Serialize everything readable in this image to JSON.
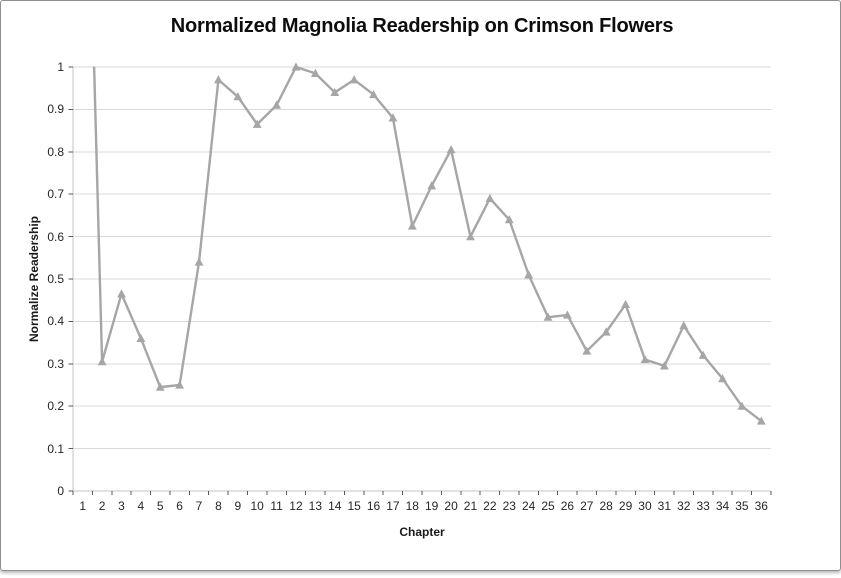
{
  "chart_data": {
    "type": "line",
    "title": "Normalized Magnolia Readership on Crimson Flowers",
    "xlabel": "Chapter",
    "ylabel": "Normalize Readership",
    "legend": "none",
    "grid": "horizontal",
    "marker": "triangle-up",
    "ylim": [
      0,
      1
    ],
    "x": [
      1,
      2,
      3,
      4,
      5,
      6,
      7,
      8,
      9,
      10,
      11,
      12,
      13,
      14,
      15,
      16,
      17,
      18,
      19,
      20,
      21,
      22,
      23,
      24,
      25,
      26,
      27,
      28,
      29,
      30,
      31,
      32,
      33,
      34,
      35,
      36
    ],
    "values": [
      2.0,
      0.305,
      0.465,
      0.36,
      0.245,
      0.25,
      0.54,
      0.97,
      0.93,
      0.865,
      0.91,
      1.0,
      0.985,
      0.94,
      0.97,
      0.935,
      0.88,
      0.625,
      0.72,
      0.805,
      0.6,
      0.69,
      0.64,
      0.51,
      0.41,
      0.415,
      0.33,
      0.375,
      0.44,
      0.31,
      0.295,
      0.39,
      0.32,
      0.265,
      0.2,
      0.165
    ],
    "first_point_clipped_at_axis_max": true,
    "xtick_labels": [
      "1",
      "2",
      "3",
      "4",
      "5",
      "6",
      "7",
      "8",
      "9",
      "10",
      "11",
      "12",
      "13",
      "14",
      "15",
      "16",
      "17",
      "18",
      "19",
      "20",
      "21",
      "22",
      "23",
      "24",
      "25",
      "26",
      "27",
      "28",
      "29",
      "30",
      "31",
      "32",
      "33",
      "34",
      "35",
      "36"
    ],
    "ytick_labels": [
      "1",
      "0.9",
      "0.8",
      "0.7",
      "0.6",
      "0.5",
      "0.4",
      "0.3",
      "0.2",
      "0.1",
      "0"
    ],
    "colors": {
      "line": "#a6a6a6",
      "marker": "#a6a6a6",
      "gridline": "#d9d9d9",
      "axis_line": "#c3c3c3",
      "tick_mark": "#595959",
      "title_text": "#0d0d0d",
      "tick_text": "#262626",
      "frame_border": "#8f8f8f"
    }
  }
}
